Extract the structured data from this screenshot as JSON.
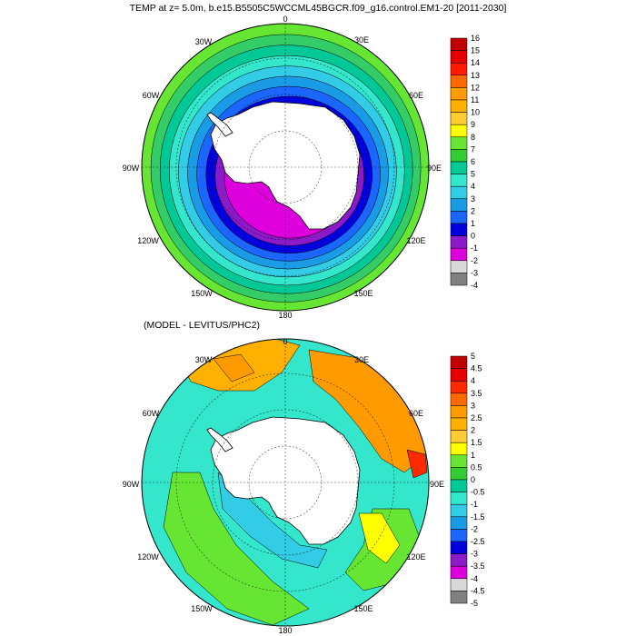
{
  "title": "TEMP at z=   5.0m, b.e15.B5505C5WCCML45BGCR.f09_g16.control.EM1-20 [2011-2030]",
  "panels": [
    {
      "id": "model",
      "subtitle": "",
      "lon_labels": {
        "deg0": "0",
        "deg30e": "30E",
        "deg60e": "60E",
        "deg90e": "90E",
        "deg120e": "120E",
        "deg150e": "150E",
        "deg180": "180",
        "deg150w": "150W",
        "deg120w": "120W",
        "deg90w": "90W",
        "deg60w": "60W",
        "deg30w": "30W"
      },
      "colorbar": {
        "labels": [
          "16",
          "15",
          "14",
          "13",
          "12",
          "11",
          "10",
          "9",
          "8",
          "7",
          "6",
          "5",
          "4",
          "3",
          "2",
          "1",
          "0",
          "-1",
          "-2",
          "-3",
          "-4"
        ],
        "colors": [
          "#c00000",
          "#e60000",
          "#ff1a00",
          "#ff6a00",
          "#ff9a00",
          "#ffb000",
          "#ffcc33",
          "#ffff00",
          "#66e633",
          "#33cc33",
          "#00c896",
          "#33e6cc",
          "#33cce6",
          "#1a9be6",
          "#1a66ff",
          "#0000dd",
          "#8c1ac8",
          "#dd00dd",
          "#d8d8d8",
          "#808080"
        ]
      },
      "rings": [
        {
          "color": "#66e633"
        },
        {
          "color": "#33cc66"
        },
        {
          "color": "#00c896"
        },
        {
          "color": "#33e6cc"
        },
        {
          "color": "#33cce6"
        },
        {
          "color": "#1a9be6"
        },
        {
          "color": "#1a66ff"
        },
        {
          "color": "#0000dd"
        },
        {
          "color": "#8c1ac8"
        },
        {
          "color": "#dd00dd"
        }
      ]
    },
    {
      "id": "diff",
      "subtitle": "(MODEL - LEVITUS/PHC2)",
      "lon_labels": {
        "deg0": "0",
        "deg30e": "30E",
        "deg60e": "60E",
        "deg90e": "90E",
        "deg120e": "120E",
        "deg150e": "150E",
        "deg180": "180",
        "deg150w": "150W",
        "deg120w": "120W",
        "deg90w": "90W",
        "deg60w": "60W",
        "deg30w": "30W"
      },
      "colorbar": {
        "labels": [
          "5",
          "4.5",
          "4",
          "3.5",
          "3",
          "2.5",
          "2",
          "1.5",
          "1",
          "0.5",
          "0",
          "-0.5",
          "-1",
          "-1.5",
          "-2",
          "-2.5",
          "-3",
          "-3.5",
          "-4",
          "-4.5",
          "-5"
        ],
        "colors": [
          "#c00000",
          "#e60000",
          "#ff2a00",
          "#ff6a00",
          "#ff9a00",
          "#ffb000",
          "#ffcc33",
          "#ffff00",
          "#66e633",
          "#33cc33",
          "#00c896",
          "#33e6cc",
          "#33cce6",
          "#1a9be6",
          "#1a66ff",
          "#0000dd",
          "#8c1ac8",
          "#dd00dd",
          "#d8d8d8",
          "#808080"
        ]
      },
      "base_color": "#33e6cc",
      "regions": [
        {
          "name": "atlantic-warm",
          "color": "#ffb000"
        },
        {
          "name": "indian-warm",
          "color": "#ff9a00"
        },
        {
          "name": "indian-hot",
          "color": "#ff2a00"
        },
        {
          "name": "pacific-green",
          "color": "#66e633"
        },
        {
          "name": "shelf-blue",
          "color": "#33cce6"
        },
        {
          "name": "yellow-band",
          "color": "#ffff00"
        }
      ]
    }
  ],
  "land_color": "#ffffff"
}
